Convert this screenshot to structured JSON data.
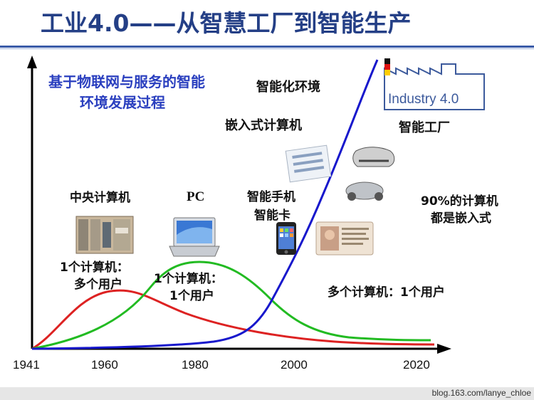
{
  "title": "工业4.0——从智慧工厂到智能生产",
  "subtitle_line1": "基于物联网与服务的智能",
  "subtitle_line2": "环境发展过程",
  "labels": {
    "smart_env": "智能化环境",
    "embedded": "嵌入式计算机",
    "smart_factory": "智能工厂",
    "mainframe": "中央计算机",
    "pc": "PC",
    "phone_line1": "智能手机",
    "phone_line2": "智能卡",
    "pct_line1": "90%的计算机",
    "pct_line2": "都是嵌入式",
    "one_many_line1": "1个计算机：",
    "one_many_line2": "多个用户",
    "one_one_line1": "1个计算机：",
    "one_one_line2": "1个用户",
    "many_one": "多个计算机：1个用户",
    "logo_text": "Industry 4.0"
  },
  "x_ticks": [
    "1941",
    "1960",
    "1980",
    "2000",
    "2020"
  ],
  "footer": "blog.163.com/lanye_chloe",
  "colors": {
    "red": "#dd2222",
    "green": "#22bb22",
    "blue": "#1818cc",
    "title": "#243f86"
  }
}
